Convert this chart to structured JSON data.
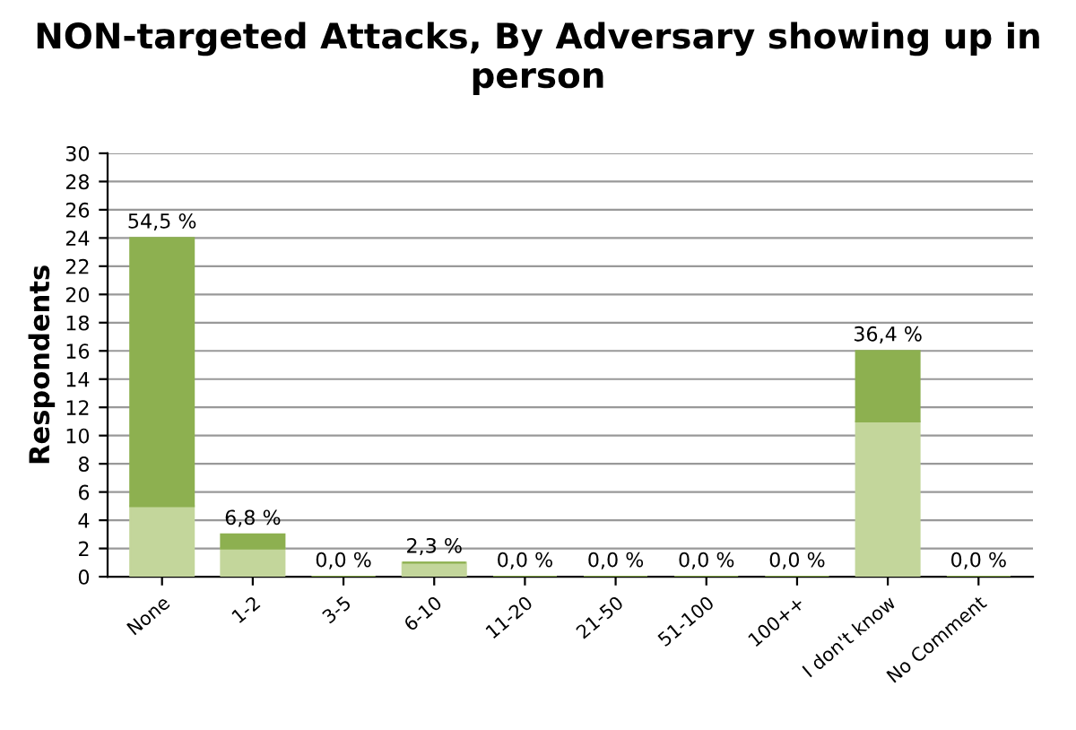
{
  "chart_data": {
    "type": "bar",
    "title": "NON-targeted Attacks, By Adversary showing up in person",
    "ylabel": "Respondents",
    "categories": [
      "None",
      "1-2",
      "3-5",
      "6-10",
      "11-20",
      "21-50",
      "51-100",
      "100++",
      "I don't know",
      "No Comment"
    ],
    "stacked": true,
    "series": [
      {
        "color": "#c3d69b",
        "values": [
          5,
          2,
          0,
          1,
          0,
          0,
          0,
          0,
          11,
          0
        ]
      },
      {
        "color": "#8db050",
        "values": [
          19,
          1,
          0,
          0,
          0,
          0,
          0,
          0,
          5,
          0
        ]
      }
    ],
    "value_labels": [
      "54,5 %",
      "6,8 %",
      "0,0 %",
      "2,3 %",
      "0,0 %",
      "0,0 %",
      "0,0 %",
      "0,0 %",
      "36,4 %",
      "0,0 %"
    ],
    "ylim": [
      0,
      30
    ],
    "yticks": [
      0,
      2,
      4,
      6,
      8,
      10,
      12,
      14,
      16,
      18,
      20,
      22,
      24,
      26,
      28,
      30
    ],
    "grid": "y",
    "legend": false
  }
}
